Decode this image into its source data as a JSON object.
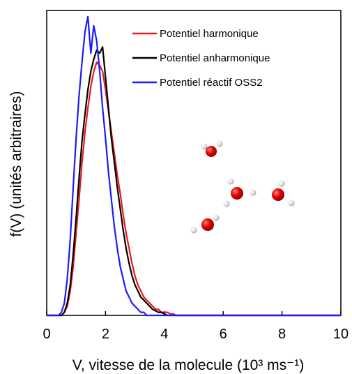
{
  "chart_data": {
    "type": "line",
    "xlabel": "V, vitesse de la molecule (10³ ms⁻¹)",
    "ylabel": "f(V)  (unités arbitraires)",
    "x": [
      0,
      0.1,
      0.2,
      0.3,
      0.4,
      0.5,
      0.6,
      0.7,
      0.8,
      0.9,
      1.0,
      1.1,
      1.2,
      1.3,
      1.4,
      1.5,
      1.6,
      1.7,
      1.8,
      1.9,
      2.0,
      2.1,
      2.2,
      2.3,
      2.4,
      2.5,
      2.6,
      2.7,
      2.8,
      2.9,
      3.0,
      3.1,
      3.2,
      3.3,
      3.4,
      3.5,
      3.6,
      3.7,
      3.8,
      3.9,
      4.0,
      4.1,
      4.2,
      4.3,
      4.4,
      4.5,
      4.6,
      4.7,
      4.8,
      4.9,
      5.0,
      6,
      7,
      8,
      9,
      10
    ],
    "series": [
      {
        "name": "Potentiel harmonique",
        "color": "#e8191c",
        "values": [
          0,
          0,
          0,
          0,
          0,
          0,
          0.01,
          0.03,
          0.08,
          0.16,
          0.27,
          0.38,
          0.5,
          0.6,
          0.68,
          0.75,
          0.8,
          0.83,
          0.82,
          0.8,
          0.74,
          0.67,
          0.6,
          0.53,
          0.46,
          0.4,
          0.33,
          0.27,
          0.22,
          0.17,
          0.13,
          0.1,
          0.08,
          0.06,
          0.05,
          0.04,
          0.03,
          0.02,
          0.02,
          0.01,
          0.01,
          0.01,
          0.005,
          0.005,
          0,
          0,
          0,
          0,
          0,
          0,
          0,
          0,
          0,
          0,
          0,
          0
        ]
      },
      {
        "name": "Potentiel anharmonique",
        "color": "#000000",
        "values": [
          0,
          0,
          0,
          0,
          0,
          0,
          0.01,
          0.04,
          0.1,
          0.2,
          0.32,
          0.45,
          0.57,
          0.66,
          0.74,
          0.8,
          0.84,
          0.87,
          0.86,
          0.88,
          0.78,
          0.68,
          0.58,
          0.5,
          0.42,
          0.35,
          0.28,
          0.22,
          0.17,
          0.13,
          0.1,
          0.08,
          0.06,
          0.05,
          0.04,
          0.03,
          0.02,
          0.015,
          0.01,
          0.01,
          0.005,
          0,
          0,
          0,
          0,
          0,
          0,
          0,
          0,
          0,
          0,
          0,
          0,
          0,
          0,
          0
        ]
      },
      {
        "name": "Potentiel réactif OSS2",
        "color": "#1a1aff",
        "values": [
          0,
          0,
          0,
          0,
          0,
          0.01,
          0.04,
          0.12,
          0.25,
          0.42,
          0.58,
          0.72,
          0.83,
          0.93,
          0.98,
          0.86,
          0.95,
          0.9,
          0.8,
          0.68,
          0.58,
          0.47,
          0.38,
          0.29,
          0.22,
          0.16,
          0.12,
          0.08,
          0.06,
          0.04,
          0.03,
          0.02,
          0.01,
          0.01,
          0,
          0,
          0,
          0,
          0,
          0,
          0,
          0,
          0,
          0,
          0,
          0,
          0,
          0,
          0,
          0,
          0,
          0,
          0,
          0,
          0,
          0
        ]
      }
    ],
    "xlim": [
      0,
      10
    ],
    "xticks": [
      0,
      2,
      4,
      6,
      8,
      10
    ],
    "ylim": [
      0,
      1
    ]
  }
}
